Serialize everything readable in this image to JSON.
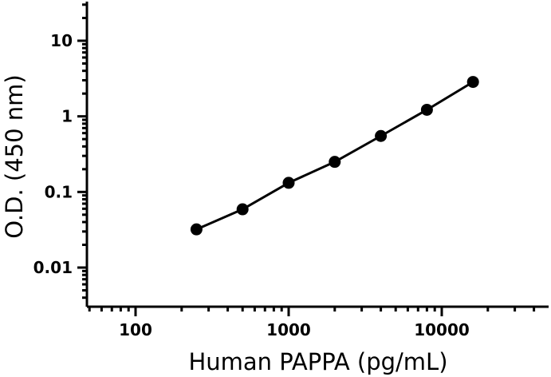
{
  "chart_data": {
    "type": "scatter",
    "title": "",
    "xlabel": "Human PAPPA (pg/mL)",
    "ylabel": "O.D. (450 nm)",
    "xscale": "log",
    "yscale": "log",
    "xlim": [
      50,
      50000
    ],
    "ylim": [
      0.002,
      30
    ],
    "x_ticks": [
      100,
      1000,
      10000
    ],
    "x_tick_labels": [
      "100",
      "1000",
      "10000"
    ],
    "y_ticks": [
      0.01,
      0.1,
      1,
      10
    ],
    "y_tick_labels": [
      "0.01",
      "0.1",
      "1",
      "10"
    ],
    "grid": false,
    "series": [
      {
        "x": [
          250,
          500,
          1000,
          2000,
          4000,
          8000,
          16000
        ],
        "y": [
          0.032,
          0.059,
          0.132,
          0.25,
          0.55,
          1.22,
          2.85
        ],
        "marker": "circle",
        "line": "fitted curve",
        "color": "#000000"
      }
    ]
  }
}
